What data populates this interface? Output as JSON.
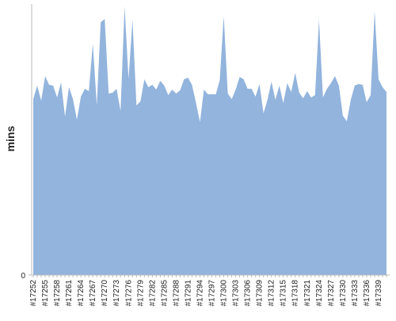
{
  "chart_data": {
    "type": "area",
    "y_label": "mins",
    "color": "#92b4dd",
    "categories": [
      "#17252",
      null,
      null,
      "#17255",
      null,
      null,
      "#17258",
      null,
      null,
      "#17261",
      null,
      null,
      "#17264",
      null,
      null,
      "#17267",
      null,
      null,
      "#17270",
      null,
      null,
      "#17273",
      null,
      null,
      "#17276",
      null,
      null,
      "#17279",
      null,
      null,
      "#17282",
      null,
      null,
      "#17285",
      null,
      null,
      "#17288",
      null,
      null,
      "#17291",
      null,
      null,
      "#17294",
      null,
      null,
      "#17297",
      null,
      null,
      "#17300",
      null,
      null,
      "#17303",
      null,
      null,
      "#17306",
      null,
      null,
      "#17309",
      null,
      null,
      "#17312",
      null,
      null,
      "#17315",
      null,
      null,
      "#17318",
      null,
      null,
      "#17321",
      null,
      null,
      "#17324",
      null,
      null,
      "#17327",
      null,
      null,
      "#17330",
      null,
      null,
      "#17333",
      null,
      null,
      "#17336",
      null,
      null,
      "#17339",
      null,
      null
    ],
    "values": [
      222,
      239,
      220,
      251,
      240,
      239,
      224,
      243,
      200,
      237,
      222,
      196,
      225,
      235,
      232,
      292,
      214,
      319,
      323,
      229,
      230,
      235,
      207,
      339,
      247,
      322,
      214,
      219,
      247,
      237,
      240,
      234,
      245,
      239,
      227,
      234,
      229,
      233,
      247,
      249,
      240,
      217,
      193,
      234,
      228,
      228,
      228,
      246,
      327,
      229,
      222,
      234,
      250,
      247,
      235,
      235,
      225,
      241,
      204,
      221,
      244,
      221,
      239,
      217,
      242,
      231,
      255,
      230,
      223,
      232,
      224,
      227,
      322,
      224,
      235,
      242,
      251,
      239,
      201,
      194,
      221,
      239,
      241,
      240,
      218,
      227,
      333,
      247,
      237,
      231
    ],
    "ylim": [
      0,
      342
    ],
    "yticks": [
      0
    ]
  }
}
